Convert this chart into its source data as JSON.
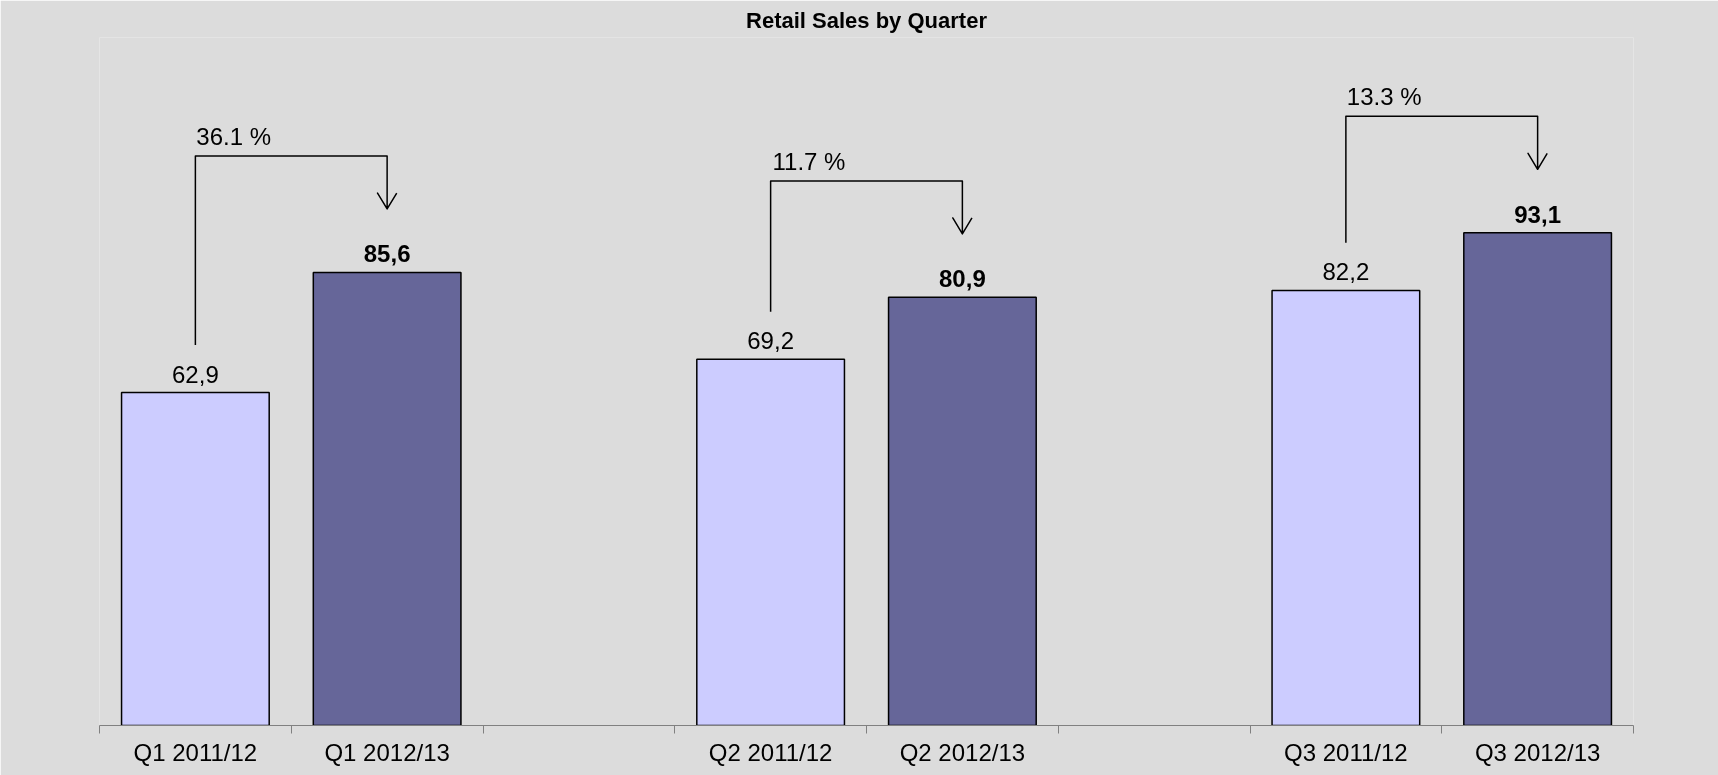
{
  "chart_data": {
    "type": "bar",
    "title": "Retail Sales by Quarter",
    "categories": [
      "Q1 2011/12",
      "Q1 2012/13",
      null,
      "Q2 2011/12",
      "Q2 2012/13",
      null,
      "Q3 2011/12",
      "Q3 2012/13"
    ],
    "values": [
      62.9,
      85.6,
      null,
      69.2,
      80.9,
      null,
      82.2,
      93.1
    ],
    "colors": [
      "#ccccff",
      "#666699",
      null,
      "#ccccff",
      "#666699",
      null,
      "#ccccff",
      "#666699"
    ],
    "value_labels": [
      "62,9",
      "85,6",
      null,
      "69,2",
      "80,9",
      null,
      "82,2",
      "93,1"
    ],
    "ylim": [
      0,
      130
    ],
    "tick_labels": "x",
    "grid": false,
    "annotations": [
      "36.1 %",
      "11.7 %",
      "13.3 %"
    ]
  }
}
